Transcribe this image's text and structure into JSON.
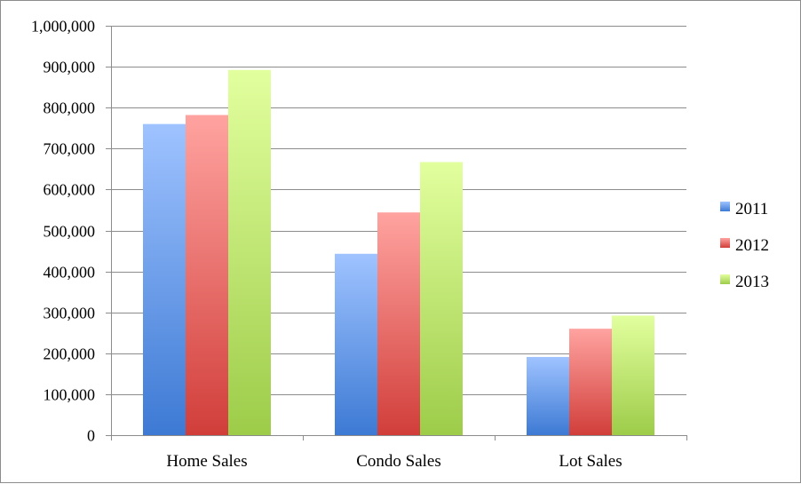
{
  "chart_data": {
    "type": "bar",
    "title": "",
    "xlabel": "",
    "ylabel": "",
    "categories": [
      "Home Sales",
      "Condo Sales",
      "Lot Sales"
    ],
    "series": [
      {
        "name": "2011",
        "values": [
          760000,
          443000,
          191000
        ],
        "color": "#4f81bd",
        "color_light": "#9fc3ff",
        "color_dark": "#3d7ad4"
      },
      {
        "name": "2012",
        "values": [
          782000,
          544000,
          260000
        ],
        "color": "#c0504d",
        "color_light": "#ffa3a0",
        "color_dark": "#d13e3a"
      },
      {
        "name": "2013",
        "values": [
          892000,
          667000,
          292000
        ],
        "color": "#9bbb59",
        "color_light": "#e2ff9e",
        "color_dark": "#9dcc49"
      }
    ],
    "ylim": [
      0,
      1000000
    ],
    "yticks": [
      0,
      100000,
      200000,
      300000,
      400000,
      500000,
      600000,
      700000,
      800000,
      900000,
      1000000
    ],
    "ytick_labels": [
      "0",
      "100,000",
      "200,000",
      "300,000",
      "400,000",
      "500,000",
      "600,000",
      "700,000",
      "800,000",
      "900,000",
      "1,000,000"
    ],
    "grid": "horizontal",
    "legend_position": "right"
  }
}
